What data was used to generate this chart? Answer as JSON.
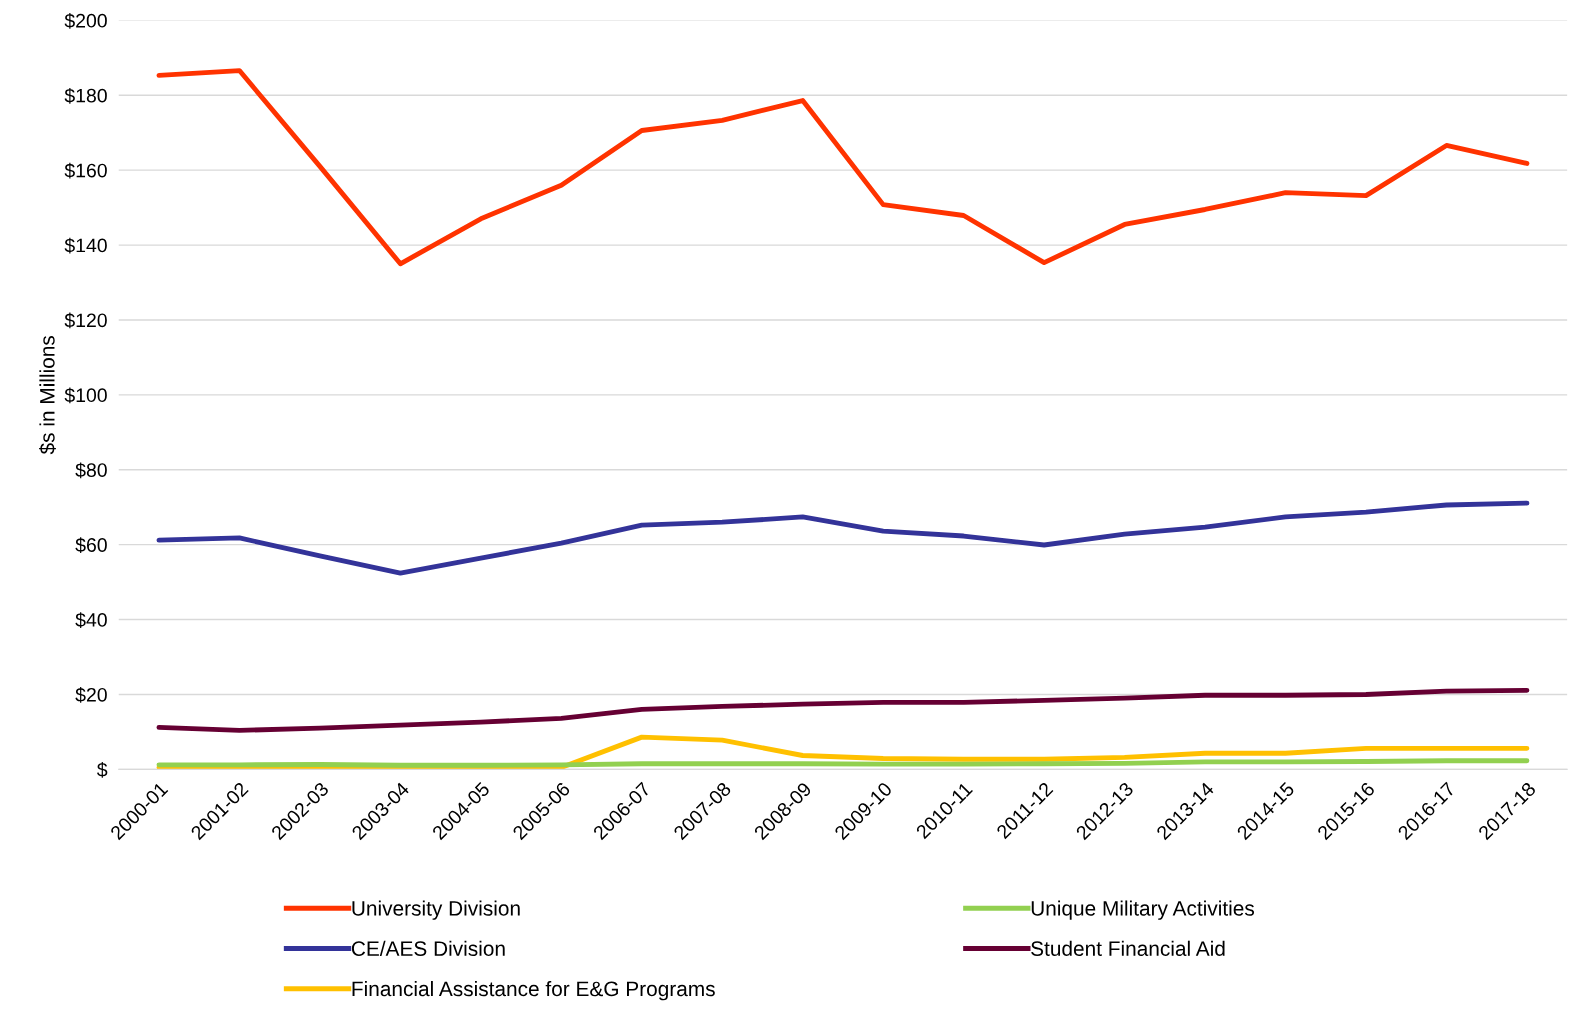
{
  "chart_data": {
    "type": "line",
    "ylabel": "$s in Millions",
    "categories": [
      "2000-01",
      "2001-02",
      "2002-03",
      "2003-04",
      "2004-05",
      "2005-06",
      "2006-07",
      "2007-08",
      "2008-09",
      "2009-10",
      "2010-11",
      "2011-12",
      "2012-13",
      "2013-14",
      "2014-15",
      "2015-16",
      "2016-17",
      "2017-18"
    ],
    "series": [
      {
        "name": "University Division",
        "color": "#ff3300",
        "values": [
          185.3,
          186.6,
          161,
          135,
          147,
          156,
          170.6,
          173.3,
          178.6,
          150.8,
          147.9,
          135.3,
          145.5,
          149.5,
          154,
          153.2,
          166.6,
          161.8
        ]
      },
      {
        "name": "CE/AES Division",
        "color": "#333399",
        "values": [
          61.2,
          61.8,
          57,
          52.4,
          56.4,
          60.4,
          65.2,
          66,
          67.4,
          63.6,
          62.3,
          59.9,
          62.8,
          64.7,
          67.4,
          68.7,
          70.6,
          71.1
        ]
      },
      {
        "name": "Financial Assistance for E&G Programs",
        "color": "#ffc000",
        "values": [
          0.5,
          0.5,
          0.5,
          0.5,
          0.5,
          0.5,
          8.6,
          7.8,
          3.7,
          2.9,
          2.7,
          2.7,
          3.2,
          4.3,
          4.3,
          5.6,
          5.6,
          5.6
        ]
      },
      {
        "name": "Unique Military Activities",
        "color": "#92d050",
        "values": [
          1.2,
          1.2,
          1.3,
          1.1,
          1.1,
          1.2,
          1.5,
          1.5,
          1.5,
          1.4,
          1.4,
          1.5,
          1.6,
          2,
          2,
          2.1,
          2.3,
          2.3
        ]
      },
      {
        "name": "Student Financial Aid",
        "color": "#660033",
        "values": [
          11.2,
          10.4,
          11,
          11.8,
          12.6,
          13.6,
          16,
          16.8,
          17.4,
          17.9,
          17.9,
          18.4,
          19,
          19.8,
          19.8,
          20,
          20.9,
          21.1
        ]
      }
    ],
    "ylim": [
      0,
      200
    ],
    "yticks": [
      {
        "value": 0,
        "label": "$"
      },
      {
        "value": 20,
        "label": "$20"
      },
      {
        "value": 40,
        "label": "$40"
      },
      {
        "value": 60,
        "label": "$60"
      },
      {
        "value": 80,
        "label": "$80"
      },
      {
        "value": 100,
        "label": "$100"
      },
      {
        "value": 120,
        "label": "$120"
      },
      {
        "value": 140,
        "label": "$140"
      },
      {
        "value": 160,
        "label": "$160"
      },
      {
        "value": 180,
        "label": "$180"
      },
      {
        "value": 200,
        "label": "$200"
      }
    ],
    "grid": "y",
    "legend": "bottom",
    "marker": "none",
    "line_style": "solid"
  }
}
